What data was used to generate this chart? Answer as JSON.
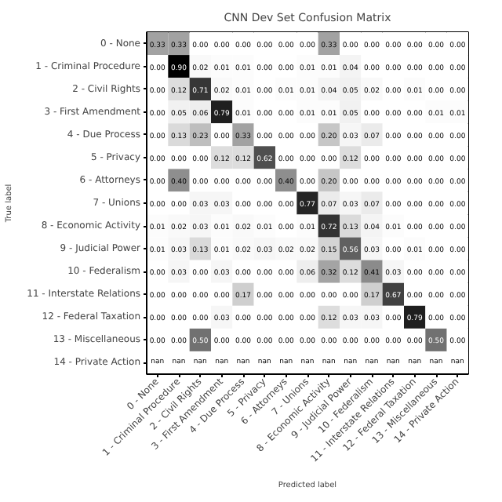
{
  "chart_data": {
    "type": "heatmap",
    "title": "CNN Dev Set Confusion Matrix",
    "xlabel": "Predicted label",
    "ylabel": "True label",
    "data_labels": true,
    "categories": [
      "0 - None",
      "1 - Criminal Procedure",
      "2 - Civil Rights",
      "3 - First Amendment",
      "4 - Due Process",
      "5 - Privacy",
      "6 - Attorneys",
      "7 - Unions",
      "8 - Economic Activity",
      "9 - Judicial Power",
      "10 - Federalism",
      "11 - Interstate Relations",
      "12 - Federal Taxation",
      "13 - Miscellaneous",
      "14 - Private Action"
    ],
    "y_categories": [
      "0 - None",
      "1 - Criminal Procedure",
      "2 - Civil Rights",
      "3 - First Amendment",
      "4 - Due Process",
      "5 - Privacy",
      "6 - Attorneys",
      "7 - Unions",
      "8 - Economic Activity",
      "9 - Judicial Power",
      "10 - Federalism",
      "11 - Interstate Relations",
      "12 - Federal Taxation",
      "13 - Miscellaneous",
      "14 - Private Action"
    ],
    "cells": [
      [
        0.33,
        0.33,
        0.0,
        0.0,
        0.0,
        0.0,
        0.0,
        0.0,
        0.33,
        0.0,
        0.0,
        0.0,
        0.0,
        0.0,
        0.0
      ],
      [
        0.0,
        0.9,
        0.02,
        0.01,
        0.01,
        0.0,
        0.0,
        0.01,
        0.01,
        0.04,
        0.0,
        0.0,
        0.0,
        0.0,
        0.0
      ],
      [
        0.0,
        0.12,
        0.71,
        0.02,
        0.01,
        0.0,
        0.01,
        0.01,
        0.04,
        0.05,
        0.02,
        0.0,
        0.01,
        0.0,
        0.0
      ],
      [
        0.0,
        0.05,
        0.06,
        0.79,
        0.01,
        0.0,
        0.0,
        0.01,
        0.01,
        0.05,
        0.0,
        0.0,
        0.0,
        0.01,
        0.01
      ],
      [
        0.0,
        0.13,
        0.23,
        0.0,
        0.33,
        0.0,
        0.0,
        0.0,
        0.2,
        0.03,
        0.07,
        0.0,
        0.0,
        0.0,
        0.0
      ],
      [
        0.0,
        0.0,
        0.0,
        0.12,
        0.12,
        0.62,
        0.0,
        0.0,
        0.0,
        0.12,
        0.0,
        0.0,
        0.0,
        0.0,
        0.0
      ],
      [
        0.0,
        0.4,
        0.0,
        0.0,
        0.0,
        0.0,
        0.4,
        0.0,
        0.2,
        0.0,
        0.0,
        0.0,
        0.0,
        0.0,
        0.0
      ],
      [
        0.0,
        0.0,
        0.03,
        0.03,
        0.0,
        0.0,
        0.0,
        0.77,
        0.07,
        0.03,
        0.07,
        0.0,
        0.0,
        0.0,
        0.0
      ],
      [
        0.01,
        0.02,
        0.03,
        0.01,
        0.02,
        0.01,
        0.0,
        0.01,
        0.72,
        0.13,
        0.04,
        0.01,
        0.0,
        0.0,
        0.0
      ],
      [
        0.01,
        0.03,
        0.13,
        0.01,
        0.02,
        0.03,
        0.02,
        0.02,
        0.15,
        0.56,
        0.03,
        0.0,
        0.01,
        0.0,
        0.0
      ],
      [
        0.0,
        0.03,
        0.0,
        0.03,
        0.0,
        0.0,
        0.0,
        0.06,
        0.32,
        0.12,
        0.41,
        0.03,
        0.0,
        0.0,
        0.0
      ],
      [
        0.0,
        0.0,
        0.0,
        0.0,
        0.17,
        0.0,
        0.0,
        0.0,
        0.0,
        0.0,
        0.17,
        0.67,
        0.0,
        0.0,
        0.0
      ],
      [
        0.0,
        0.0,
        0.0,
        0.03,
        0.0,
        0.0,
        0.0,
        0.0,
        0.12,
        0.03,
        0.03,
        0.0,
        0.79,
        0.0,
        0.0
      ],
      [
        0.0,
        0.0,
        0.5,
        0.0,
        0.0,
        0.0,
        0.0,
        0.0,
        0.0,
        0.0,
        0.0,
        0.0,
        0.0,
        0.5,
        0.0
      ],
      [
        null,
        null,
        null,
        null,
        null,
        null,
        null,
        null,
        null,
        null,
        null,
        null,
        null,
        null,
        null
      ]
    ],
    "cell_labels": [
      [
        "0.33",
        "0.33",
        "0.00",
        "0.00",
        "0.00",
        "0.00",
        "0.00",
        "0.00",
        "0.33",
        "0.00",
        "0.00",
        "0.00",
        "0.00",
        "0.00",
        "0.00"
      ],
      [
        "0.00",
        "0.90",
        "0.02",
        "0.01",
        "0.01",
        "0.00",
        "0.00",
        "0.01",
        "0.01",
        "0.04",
        "0.00",
        "0.00",
        "0.00",
        "0.00",
        "0.00"
      ],
      [
        "0.00",
        "0.12",
        "0.71",
        "0.02",
        "0.01",
        "0.00",
        "0.01",
        "0.01",
        "0.04",
        "0.05",
        "0.02",
        "0.00",
        "0.01",
        "0.00",
        "0.00"
      ],
      [
        "0.00",
        "0.05",
        "0.06",
        "0.79",
        "0.01",
        "0.00",
        "0.00",
        "0.01",
        "0.01",
        "0.05",
        "0.00",
        "0.00",
        "0.00",
        "0.01",
        "0.01"
      ],
      [
        "0.00",
        "0.13",
        "0.23",
        "0.00",
        "0.33",
        "0.00",
        "0.00",
        "0.00",
        "0.20",
        "0.03",
        "0.07",
        "0.00",
        "0.00",
        "0.00",
        "0.00"
      ],
      [
        "0.00",
        "0.00",
        "0.00",
        "0.12",
        "0.12",
        "0.62",
        "0.00",
        "0.00",
        "0.00",
        "0.12",
        "0.00",
        "0.00",
        "0.00",
        "0.00",
        "0.00"
      ],
      [
        "0.00",
        "0.40",
        "0.00",
        "0.00",
        "0.00",
        "0.00",
        "0.40",
        "0.00",
        "0.20",
        "0.00",
        "0.00",
        "0.00",
        "0.00",
        "0.00",
        "0.00"
      ],
      [
        "0.00",
        "0.00",
        "0.03",
        "0.03",
        "0.00",
        "0.00",
        "0.00",
        "0.77",
        "0.07",
        "0.03",
        "0.07",
        "0.00",
        "0.00",
        "0.00",
        "0.00"
      ],
      [
        "0.01",
        "0.02",
        "0.03",
        "0.01",
        "0.02",
        "0.01",
        "0.00",
        "0.01",
        "0.72",
        "0.13",
        "0.04",
        "0.01",
        "0.00",
        "0.00",
        "0.00"
      ],
      [
        "0.01",
        "0.03",
        "0.13",
        "0.01",
        "0.02",
        "0.03",
        "0.02",
        "0.02",
        "0.15",
        "0.56",
        "0.03",
        "0.00",
        "0.01",
        "0.00",
        "0.00"
      ],
      [
        "0.00",
        "0.03",
        "0.00",
        "0.03",
        "0.00",
        "0.00",
        "0.00",
        "0.06",
        "0.32",
        "0.12",
        "0.41",
        "0.03",
        "0.00",
        "0.00",
        "0.00"
      ],
      [
        "0.00",
        "0.00",
        "0.00",
        "0.00",
        "0.17",
        "0.00",
        "0.00",
        "0.00",
        "0.00",
        "0.00",
        "0.17",
        "0.67",
        "0.00",
        "0.00",
        "0.00"
      ],
      [
        "0.00",
        "0.00",
        "0.00",
        "0.03",
        "0.00",
        "0.00",
        "0.00",
        "0.00",
        "0.12",
        "0.03",
        "0.03",
        "0.00",
        "0.79",
        "0.00",
        "0.00"
      ],
      [
        "0.00",
        "0.00",
        "0.50",
        "0.00",
        "0.00",
        "0.00",
        "0.00",
        "0.00",
        "0.00",
        "0.00",
        "0.00",
        "0.00",
        "0.00",
        "0.50",
        "0.00"
      ],
      [
        "nan",
        "nan",
        "nan",
        "nan",
        "nan",
        "nan",
        "nan",
        "nan",
        "nan",
        "nan",
        "nan",
        "nan",
        "nan",
        "nan",
        "nan"
      ]
    ]
  }
}
